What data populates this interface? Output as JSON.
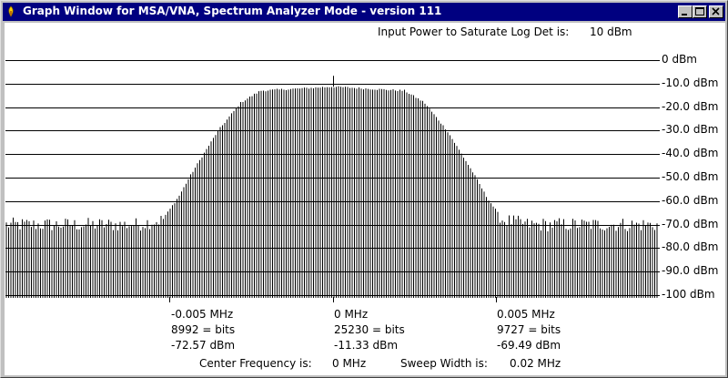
{
  "window": {
    "title": "Graph Window for MSA/VNA, Spectrum Analyzer Mode - version 111",
    "icon": "app-icon"
  },
  "header": {
    "saturate_label": "Input Power to Saturate Log Det is:",
    "saturate_value": "10 dBm"
  },
  "y_labels": [
    "0 dBm",
    "-10.0 dBm",
    "-20.0 dBm",
    "-30.0 dBm",
    "-40.0 dBm",
    "-50.0 dBm",
    "-60.0 dBm",
    "-70.0 dBm",
    "-80.0 dBm",
    "-90.0 dBm",
    "-100 dBm"
  ],
  "markers": [
    {
      "freq": "-0.005 MHz",
      "bits": "8992 = bits",
      "power": "-72.57 dBm"
    },
    {
      "freq": "0 MHz",
      "bits": "25230 = bits",
      "power": "-11.33 dBm"
    },
    {
      "freq": "0.005 MHz",
      "bits": "9727 = bits",
      "power": "-69.49 dBm"
    }
  ],
  "footer": {
    "center_label": "Center Frequency is:",
    "center_value": "0 MHz",
    "sweep_label": "Sweep Width is:",
    "sweep_value": "0.02 MHz"
  },
  "chart_data": {
    "type": "bar",
    "title": "",
    "xlabel": "",
    "ylabel": "",
    "x_range_mhz": [
      -0.01,
      0.01
    ],
    "ylim": [
      -100,
      0
    ],
    "y_ticks_dbm": [
      0,
      -10,
      -20,
      -30,
      -40,
      -50,
      -60,
      -70,
      -80,
      -90,
      -100
    ],
    "grid": true,
    "series": [
      {
        "x_mhz": [
          -0.01,
          -0.006,
          -0.0052,
          -0.0047,
          -0.0043,
          -0.0035,
          -0.0028,
          -0.0022,
          0.0,
          0.0022,
          0.0028,
          0.0035,
          0.0043,
          0.0047,
          0.0052,
          0.006,
          0.01
        ],
        "values_dbm": [
          -70,
          -70,
          -68,
          -58,
          -48,
          -30,
          -18,
          -13,
          -11.33,
          -13,
          -18,
          -30,
          -48,
          -58,
          -68,
          -70,
          -70
        ]
      }
    ],
    "marker_points": [
      {
        "x_mhz": -0.005,
        "y_dbm": -72.57
      },
      {
        "x_mhz": 0.0,
        "y_dbm": -11.33
      },
      {
        "x_mhz": 0.005,
        "y_dbm": -69.49
      }
    ],
    "colors": {
      "trace": "#000000",
      "grid": "#000000",
      "background": "#ffffff"
    }
  }
}
